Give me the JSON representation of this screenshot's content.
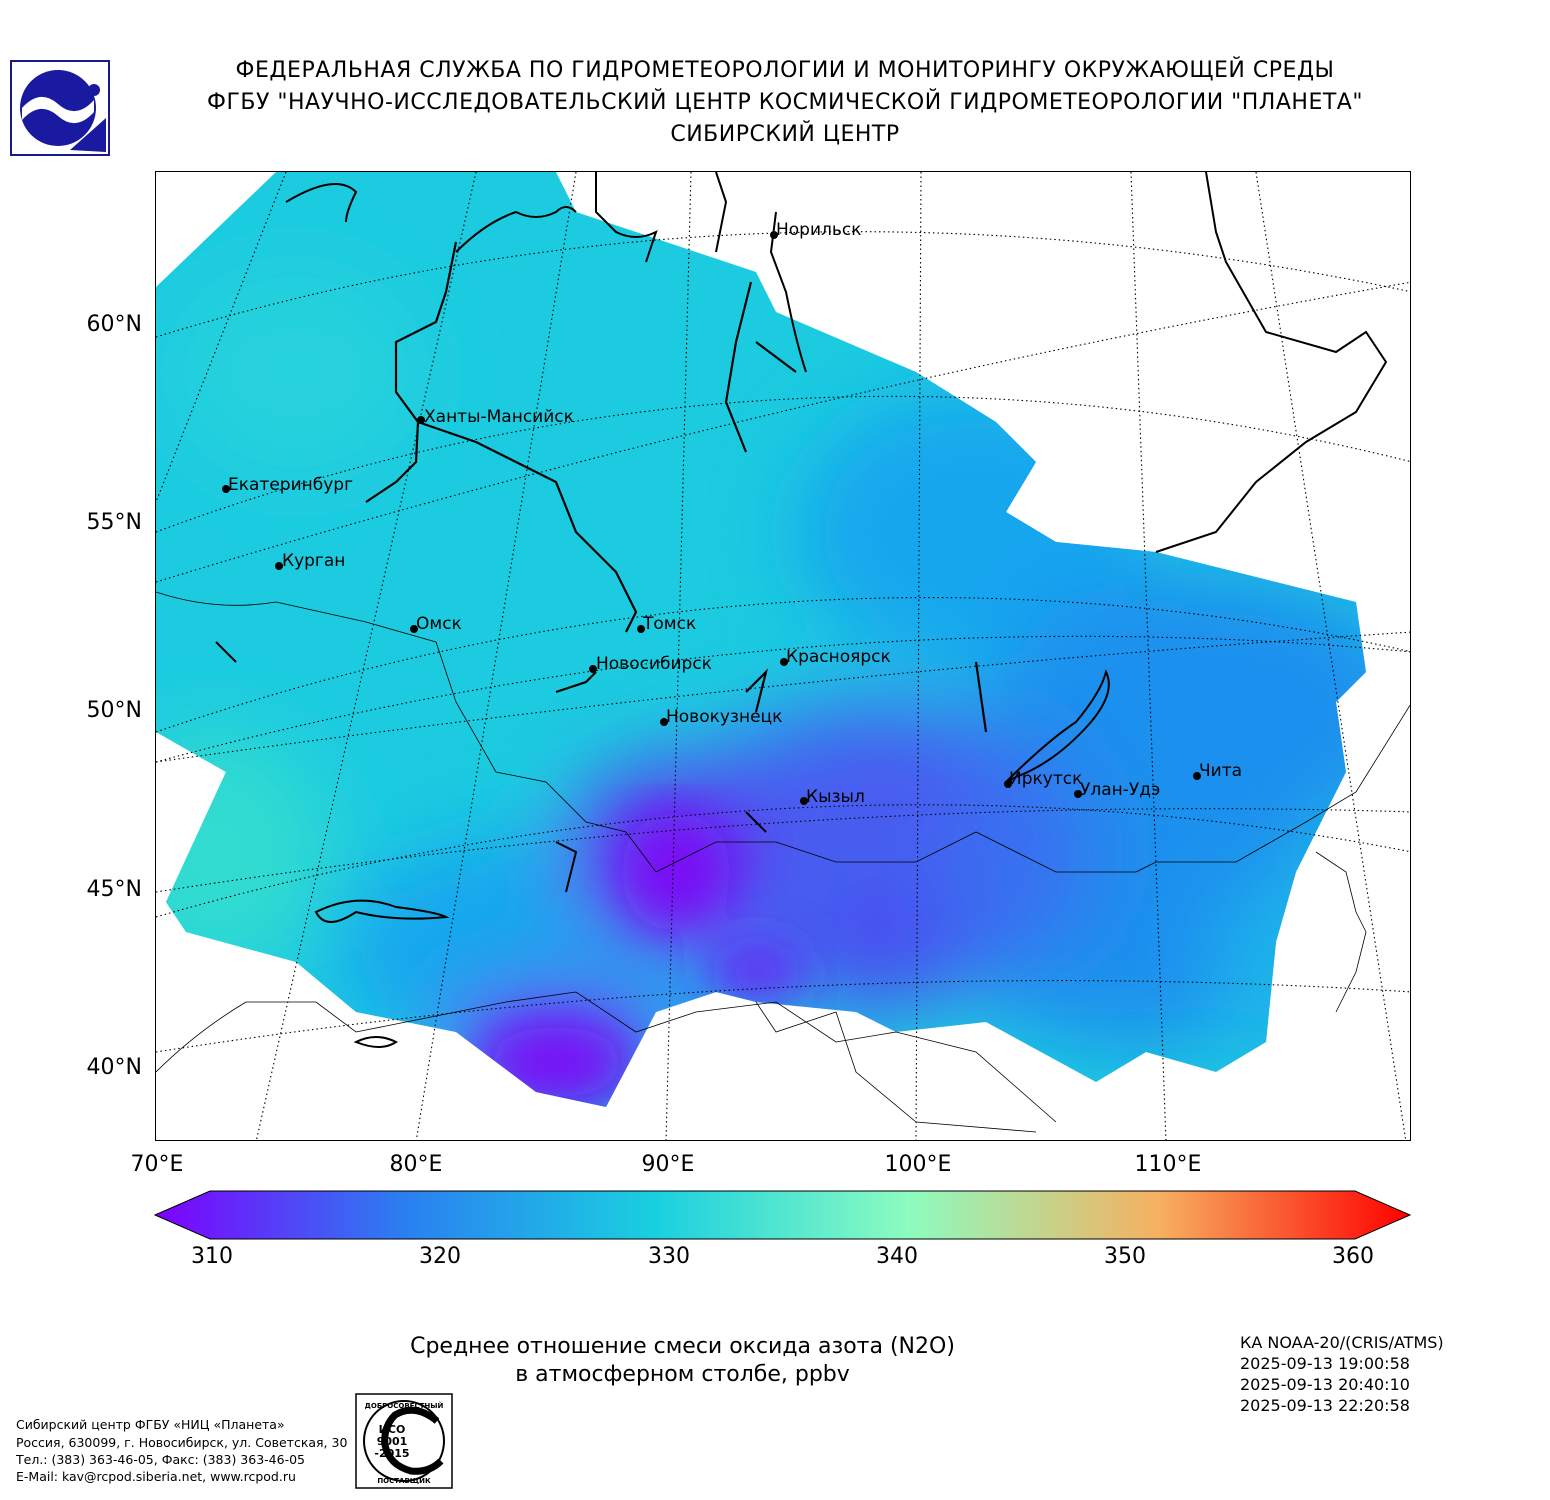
{
  "header": {
    "line1": "ФЕДЕРАЛЬНАЯ СЛУЖБА ПО ГИДРОМЕТЕОРОЛОГИИ И МОНИТОРИНГУ ОКРУЖАЮЩЕЙ СРЕДЫ",
    "line2": "ФГБУ \"НАУЧНО-ИССЛЕДОВАТЕЛЬСКИЙ ЦЕНТР КОСМИЧЕСКОЙ ГИДРОМЕТЕОРОЛОГИИ \"ПЛАНЕТА\"",
    "line3": "СИБИРСКИЙ ЦЕНТР"
  },
  "map": {
    "lat_labels": [
      "60°N",
      "55°N",
      "50°N",
      "45°N",
      "40°N"
    ],
    "lon_labels": [
      "70°E",
      "80°E",
      "90°E",
      "100°E",
      "110°E"
    ],
    "cities": [
      {
        "name": "Норильск"
      },
      {
        "name": "Ханты-Мансийск"
      },
      {
        "name": "Екатеринбург"
      },
      {
        "name": "Курган"
      },
      {
        "name": "Омск"
      },
      {
        "name": "Томск"
      },
      {
        "name": "Новосибирск"
      },
      {
        "name": "Красноярск"
      },
      {
        "name": "Новокузнецк"
      },
      {
        "name": "Иркутск"
      },
      {
        "name": "Улан-Удэ"
      },
      {
        "name": "Чита"
      },
      {
        "name": "Кызыл"
      }
    ],
    "colors": {
      "dominant": "#1ccbe0",
      "mid": "#15a6ee",
      "low": "#5a3cf0",
      "lowest": "#7a10f5",
      "high_west": "#30dcd0"
    }
  },
  "colorbar": {
    "min": 310,
    "max": 360,
    "ticks": [
      "310",
      "320",
      "330",
      "340",
      "350",
      "360"
    ],
    "colors": [
      "#7f00ff",
      "#2a80f0",
      "#1ad0e0",
      "#8cfcc0",
      "#f6b060",
      "#ff2010",
      "#ff0000"
    ]
  },
  "caption": {
    "line1": "Среднее отношение смеси оксида азота (N2O)",
    "line2": "в атмосферном столбе, ppbv"
  },
  "satellite": {
    "name": "КА NOAA-20/(CRIS/ATMS)",
    "times": [
      "2025-09-13 19:00:58",
      "2025-09-13 20:40:10",
      "2025-09-13 22:20:58"
    ]
  },
  "footer": {
    "org": "Сибирский центр ФГБУ «НИЦ «Планета»",
    "address": "Россия, 630099, г. Новосибирск, ул. Советская, 30",
    "phone": "Тел.: (383) 363-46-05, Факс: (383) 363-46-05",
    "email": "E-Mail: kav@rcpod.siberia.net, www.rcpod.ru"
  },
  "stamp": {
    "top_text": "ДОБРОСОВЕСТНЫЙ",
    "iso": "ИСО",
    "number": "9001",
    "year": "-2015",
    "bottom_text": "ПОСТАВЩИК"
  }
}
